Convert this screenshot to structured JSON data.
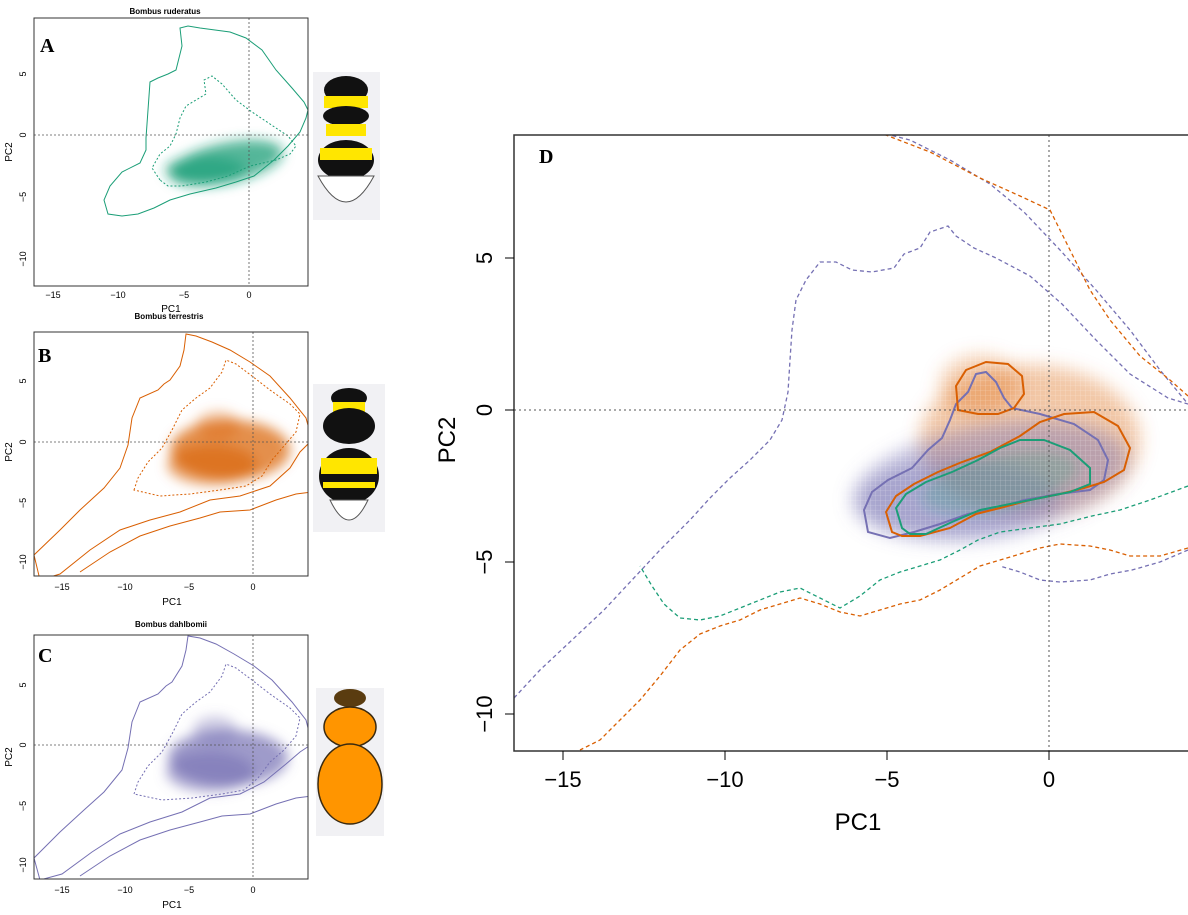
{
  "chart_data": [
    {
      "type": "heatmap",
      "panel": "A",
      "title": "Bombus ruderatus",
      "xlabel": "PC1",
      "ylabel": "PC2",
      "xlim": [
        -16.5,
        4.5
      ],
      "ylim": [
        -11,
        9.3
      ],
      "xticks": [
        -15,
        -10,
        -5,
        0
      ],
      "yticks": [
        -10,
        -5,
        0,
        5
      ],
      "grid": false,
      "color": "#1b9e77",
      "density_center": [
        -2,
        -2.5
      ],
      "occupied_range_pc1": [
        -11,
        4.5
      ],
      "occupied_range_pc2": [
        -6.5,
        8.8
      ],
      "illustration": "bumblebee with black and yellow bands, white tail",
      "illustration_colors": [
        "#111111",
        "#ffe600",
        "#ffffff"
      ]
    },
    {
      "type": "heatmap",
      "panel": "B",
      "title": "Bombus terrestris",
      "xlabel": "PC1",
      "ylabel": "PC2",
      "xlim": [
        -16.5,
        4.5
      ],
      "ylim": [
        -11,
        9.3
      ],
      "xticks": [
        -15,
        -10,
        -5,
        0
      ],
      "yticks": [
        -10,
        -5,
        0,
        5
      ],
      "grid": false,
      "color": "#d95f02",
      "density_center": [
        -1.5,
        -1.5
      ],
      "occupied_range_pc1": [
        -16.5,
        4.5
      ],
      "occupied_range_pc2": [
        -11,
        8.8
      ],
      "illustration": "bumblebee with black and yellow bands, white tail",
      "illustration_colors": [
        "#111111",
        "#ffe600",
        "#ffffff"
      ]
    },
    {
      "type": "heatmap",
      "panel": "C",
      "title": "Bombus dahlbomii",
      "xlabel": "PC1",
      "ylabel": "PC2",
      "xlim": [
        -16.5,
        4.5
      ],
      "ylim": [
        -11,
        9.3
      ],
      "xticks": [
        -15,
        -10,
        -5,
        0
      ],
      "yticks": [
        -10,
        -5,
        0,
        5
      ],
      "grid": false,
      "color": "#7570b3",
      "density_center": [
        -1.5,
        -1.5
      ],
      "occupied_range_pc1": [
        -16.5,
        4.5
      ],
      "occupied_range_pc2": [
        -11,
        8.8
      ],
      "illustration": "orange bumblebee",
      "illustration_colors": [
        "#ff9500",
        "#3a2a10"
      ]
    },
    {
      "type": "heatmap",
      "panel": "D",
      "title": "",
      "xlabel": "PC1",
      "ylabel": "PC2",
      "xlim": [
        -16.5,
        4.5
      ],
      "ylim": [
        -11.2,
        9
      ],
      "xticks": [
        -15,
        -10,
        -5,
        0
      ],
      "yticks": [
        -10,
        -5,
        0,
        5
      ],
      "grid": false,
      "series": [
        {
          "color": "#1b9e77",
          "density_center": [
            -2,
            -2.5
          ]
        },
        {
          "color": "#d95f02",
          "density_center": [
            -1.5,
            -1.5
          ]
        },
        {
          "color": "#7570b3",
          "density_center": [
            -1.5,
            -1.5
          ]
        }
      ]
    }
  ]
}
